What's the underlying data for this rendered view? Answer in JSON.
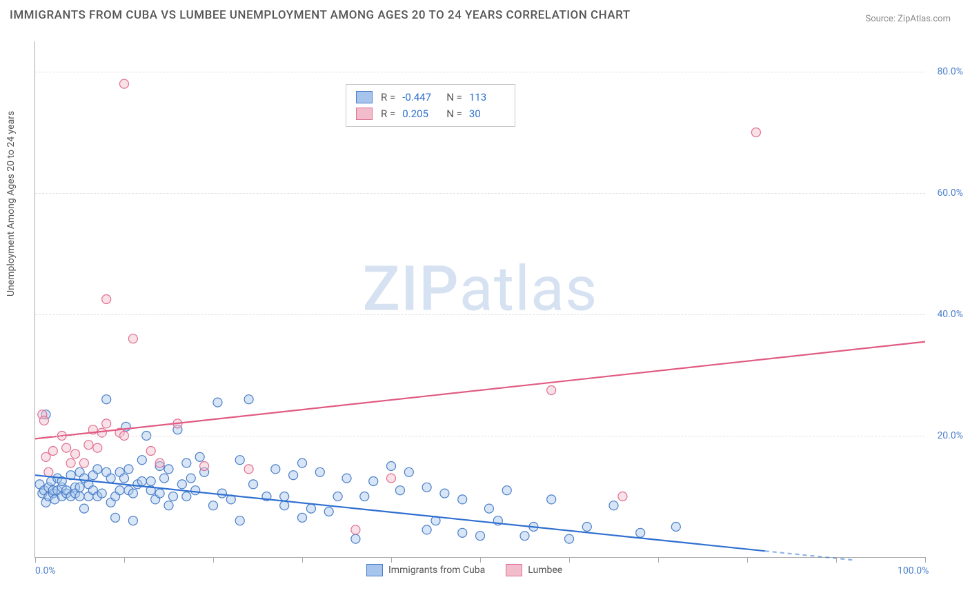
{
  "title": "IMMIGRANTS FROM CUBA VS LUMBEE UNEMPLOYMENT AMONG AGES 20 TO 24 YEARS CORRELATION CHART",
  "source": "Source: ZipAtlas.com",
  "ylabel": "Unemployment Among Ages 20 to 24 years",
  "watermark_bold": "ZIP",
  "watermark_rest": "atlas",
  "chart": {
    "type": "scatter",
    "background_color": "#ffffff",
    "grid_color": "#e0e0e0",
    "axis_color": "#aaaaaa",
    "xlim": [
      0,
      100
    ],
    "ylim": [
      0,
      85
    ],
    "xtick_positions": [
      0,
      10,
      20,
      30,
      40,
      50,
      60,
      70,
      80,
      90,
      100
    ],
    "xtick_labels": {
      "0": "0.0%",
      "100": "100.0%"
    },
    "ytick_positions": [
      20,
      40,
      60,
      80
    ],
    "ytick_labels": [
      "20.0%",
      "40.0%",
      "60.0%",
      "80.0%"
    ],
    "marker_radius": 6.5,
    "marker_stroke_width": 1.2,
    "marker_fill_opacity": 0.45,
    "line_width": 2.2,
    "series": [
      {
        "name": "Immigrants from Cuba",
        "color_fill": "#a7c5ec",
        "color_stroke": "#4a7ec9",
        "line_color": "#2f6fd0",
        "R": "-0.447",
        "N": "113",
        "trend": {
          "x1": 0,
          "y1": 13.5,
          "x2": 82,
          "y2": 1.0,
          "extend_x": 92,
          "extend_y": -0.5
        },
        "points": [
          [
            0.5,
            12
          ],
          [
            0.8,
            10.5
          ],
          [
            1.0,
            11
          ],
          [
            1.2,
            23.5
          ],
          [
            1.2,
            9
          ],
          [
            1.5,
            10
          ],
          [
            1.5,
            11.5
          ],
          [
            1.8,
            12.5
          ],
          [
            2,
            10.5
          ],
          [
            2,
            11
          ],
          [
            2.2,
            9.5
          ],
          [
            2.5,
            11
          ],
          [
            2.5,
            13
          ],
          [
            3,
            10
          ],
          [
            3,
            11.5
          ],
          [
            3,
            12.5
          ],
          [
            3.5,
            10.5
          ],
          [
            3.5,
            11
          ],
          [
            4,
            10
          ],
          [
            4,
            13.5
          ],
          [
            4.5,
            11.5
          ],
          [
            4.5,
            10.5
          ],
          [
            5,
            10
          ],
          [
            5,
            11.5
          ],
          [
            5,
            14
          ],
          [
            5.5,
            13
          ],
          [
            5.5,
            8
          ],
          [
            6,
            10
          ],
          [
            6,
            12
          ],
          [
            6.5,
            13.5
          ],
          [
            6.5,
            11
          ],
          [
            7,
            10
          ],
          [
            7,
            14.5
          ],
          [
            7.5,
            10.5
          ],
          [
            8,
            26
          ],
          [
            8,
            14
          ],
          [
            8.5,
            13
          ],
          [
            8.5,
            9
          ],
          [
            9,
            6.5
          ],
          [
            9,
            10
          ],
          [
            9.5,
            11
          ],
          [
            9.5,
            14
          ],
          [
            10,
            13
          ],
          [
            10.2,
            21.5
          ],
          [
            10.5,
            11
          ],
          [
            10.5,
            14.5
          ],
          [
            11,
            6
          ],
          [
            11,
            10.5
          ],
          [
            11.5,
            12
          ],
          [
            12,
            16
          ],
          [
            12,
            12.5
          ],
          [
            12.5,
            20
          ],
          [
            13,
            11
          ],
          [
            13,
            12.5
          ],
          [
            13.5,
            9.5
          ],
          [
            14,
            10.5
          ],
          [
            14,
            15
          ],
          [
            14.5,
            13
          ],
          [
            15,
            8.5
          ],
          [
            15,
            14.5
          ],
          [
            15.5,
            10
          ],
          [
            16,
            21
          ],
          [
            16.5,
            12
          ],
          [
            17,
            10
          ],
          [
            17,
            15.5
          ],
          [
            17.5,
            13
          ],
          [
            18,
            11
          ],
          [
            18.5,
            16.5
          ],
          [
            19,
            14
          ],
          [
            20,
            8.5
          ],
          [
            20.5,
            25.5
          ],
          [
            21,
            10.5
          ],
          [
            22,
            9.5
          ],
          [
            23,
            6
          ],
          [
            23,
            16
          ],
          [
            24,
            26
          ],
          [
            24.5,
            12
          ],
          [
            26,
            10
          ],
          [
            27,
            14.5
          ],
          [
            28,
            8.5
          ],
          [
            28,
            10
          ],
          [
            29,
            13.5
          ],
          [
            30,
            6.5
          ],
          [
            30,
            15.5
          ],
          [
            31,
            8
          ],
          [
            32,
            14
          ],
          [
            33,
            7.5
          ],
          [
            34,
            10
          ],
          [
            35,
            13
          ],
          [
            36,
            3
          ],
          [
            37,
            10
          ],
          [
            38,
            12.5
          ],
          [
            40,
            15
          ],
          [
            41,
            11
          ],
          [
            42,
            14
          ],
          [
            44,
            11.5
          ],
          [
            44,
            4.5
          ],
          [
            45,
            6
          ],
          [
            46,
            10.5
          ],
          [
            48,
            9.5
          ],
          [
            48,
            4
          ],
          [
            50,
            3.5
          ],
          [
            51,
            8
          ],
          [
            52,
            6
          ],
          [
            53,
            11
          ],
          [
            55,
            3.5
          ],
          [
            56,
            5
          ],
          [
            58,
            9.5
          ],
          [
            60,
            3
          ],
          [
            62,
            5
          ],
          [
            65,
            8.5
          ],
          [
            68,
            4
          ],
          [
            72,
            5
          ]
        ]
      },
      {
        "name": "Lumbee",
        "color_fill": "#f1bccb",
        "color_stroke": "#e06f92",
        "line_color": "#e05a82",
        "R": "0.205",
        "N": "30",
        "trend": {
          "x1": 0,
          "y1": 19.5,
          "x2": 100,
          "y2": 35.5
        },
        "points": [
          [
            0.8,
            23.5
          ],
          [
            1,
            22.5
          ],
          [
            1.2,
            16.5
          ],
          [
            1.5,
            14
          ],
          [
            2,
            17.5
          ],
          [
            3,
            20
          ],
          [
            3.5,
            18
          ],
          [
            4,
            15.5
          ],
          [
            4.5,
            17
          ],
          [
            5.5,
            15.5
          ],
          [
            6,
            18.5
          ],
          [
            6.5,
            21
          ],
          [
            7,
            18
          ],
          [
            7.5,
            20.5
          ],
          [
            8,
            22
          ],
          [
            8,
            42.5
          ],
          [
            9.5,
            20.5
          ],
          [
            10,
            20
          ],
          [
            10,
            78
          ],
          [
            11,
            36
          ],
          [
            13,
            17.5
          ],
          [
            14,
            15.5
          ],
          [
            16,
            22
          ],
          [
            19,
            15
          ],
          [
            24,
            14.5
          ],
          [
            36,
            4.5
          ],
          [
            40,
            13
          ],
          [
            58,
            27.5
          ],
          [
            66,
            10
          ],
          [
            81,
            70
          ]
        ]
      }
    ]
  }
}
